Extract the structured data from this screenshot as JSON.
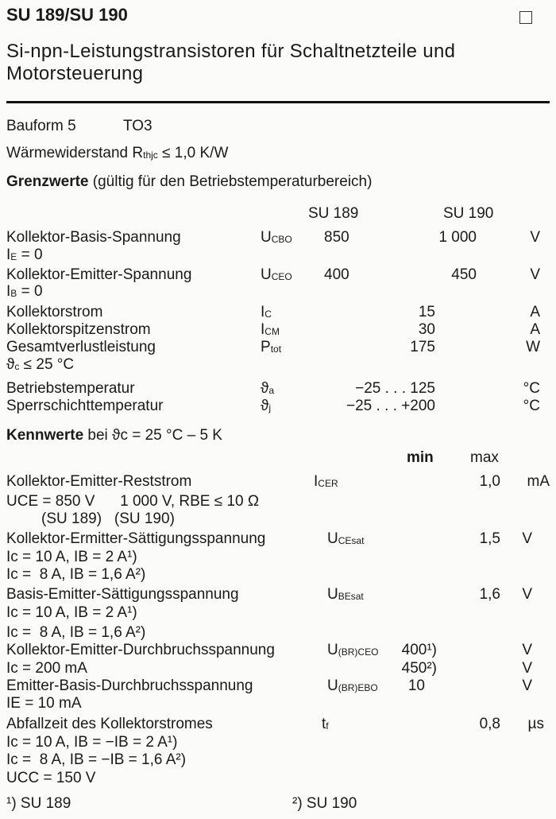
{
  "header": {
    "title": "SU 189/SU 190",
    "subtitle_line1": "Si-npn-Leistungstransistoren für Schaltnetzteile und",
    "subtitle_line2": "Motorsteuerung"
  },
  "package": {
    "label": "Bauform 5",
    "value": "TO3"
  },
  "thermal": {
    "label": "Wärmewiderstand",
    "sym": "R",
    "sub": "thjc",
    "value": "≤ 1,0 K/W"
  },
  "limits": {
    "heading": "Grenzwerte",
    "heading_note": "(gültig für den Betriebstemperaturbereich)",
    "col1": "SU 189",
    "col2": "SU 190",
    "rows": [
      {
        "label": "Kollektor-Basis-Spannung",
        "sym": "U",
        "sub": "CBO",
        "v1": "850",
        "v2": "1 000",
        "unit": "V",
        "cond_sym": "I",
        "cond_sub": "E",
        "cond": " = 0"
      },
      {
        "label": "Kollektor-Emitter-Spannung",
        "sym": "U",
        "sub": "CEO",
        "v1": "400",
        "v2": "450",
        "unit": "V",
        "cond_sym": "I",
        "cond_sub": "B",
        "cond": " = 0"
      },
      {
        "label": "Kollektorstrom",
        "sym": "I",
        "sub": "C",
        "v": "15",
        "unit": "A"
      },
      {
        "label": "Kollektorspitzenstrom",
        "sym": "I",
        "sub": "CM",
        "v": "30",
        "unit": "A"
      },
      {
        "label": "Gesamtverlustleistung",
        "sym": "P",
        "sub": "tot",
        "v": "175",
        "unit": "W",
        "cond_sym": "ϑ",
        "cond_sub": "c",
        "cond": " ≤ 25 °C"
      },
      {
        "label": "Betriebstemperatur",
        "sym": "ϑ",
        "sub": "a",
        "v": "−25 . . . 125",
        "unit": "°C"
      },
      {
        "label": "Sperrschichttemperatur",
        "sym": "ϑ",
        "sub": "j",
        "v": "−25 . . . +200",
        "unit": "°C"
      }
    ]
  },
  "characteristics": {
    "heading": "Kennwerte",
    "heading_rest": "bei ϑc = 25 °C – 5 K",
    "min": "min",
    "max": "max",
    "rows": [
      {
        "label": "Kollektor-Emitter-Reststrom",
        "sym": "I",
        "sub": "CER",
        "max": "1,0",
        "unit": "mA",
        "cond1": "UCE = 850 V      1 000 V, RBE ≤ 10 Ω",
        "cond2": "(SU 189)   (SU 190)"
      },
      {
        "label": "Kollektor-Ermitter-Sättigungsspannung",
        "sym": "U",
        "sub": "CEsat",
        "max": "1,5",
        "unit": "V",
        "cond1": "Ic = 10 A, IB = 2 A¹)",
        "cond2": "Ic =  8 A, IB = 1,6 A²)"
      },
      {
        "label": "Basis-Emitter-Sättigungsspannung",
        "sym": "U",
        "sub": "BEsat",
        "max": "1,6",
        "unit": "V",
        "cond1": "Ic = 10 A, IB = 2 A¹)",
        "cond2": "Ic =  8 A, IB = 1,6 A²)"
      },
      {
        "label": "Kollektor-Emitter-Durchbruchsspannung",
        "sym": "U",
        "sub": "(BR)CEO",
        "min": "400¹)",
        "min2": "450²)",
        "unit": "V",
        "cond1": "Ic = 200 mA"
      },
      {
        "label": "Emitter-Basis-Durchbruchsspannung",
        "sym": "U",
        "sub": "(BR)EBO",
        "min": "10",
        "unit": "V",
        "cond1": "IE = 10 mA"
      },
      {
        "label": "Abfallzeit des Kollektorstromes",
        "sym": "t",
        "sub": "f",
        "max": "0,8",
        "unit": "µs",
        "cond1": "Ic = 10 A, IB = −IB = 2 A¹)",
        "cond2": "Ic =  8 A, IB = −IB = 1,6 A²)",
        "cond3": "UCC = 150 V"
      }
    ]
  },
  "footnotes": {
    "f1": "¹) SU 189",
    "f2": "²) SU 190"
  }
}
